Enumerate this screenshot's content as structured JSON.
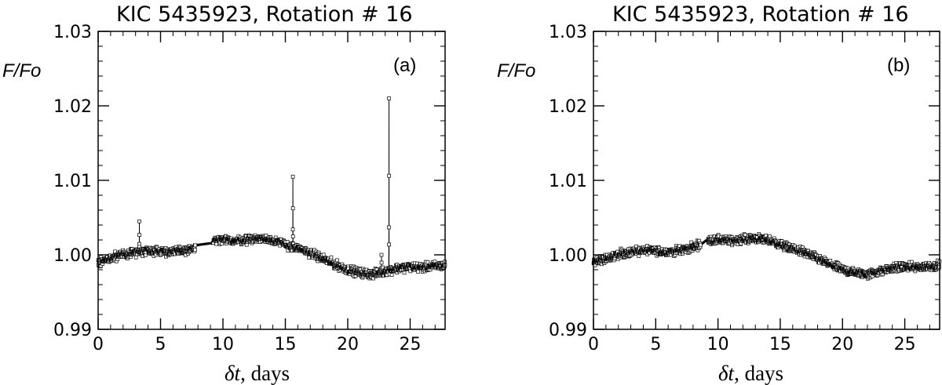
{
  "chart_data": [
    {
      "type": "line",
      "title": "KIC 5435923, Rotation # 16",
      "panel_label": "(a)",
      "ylabel": "F/Fo",
      "xlabel_symbol": "δt",
      "xlabel_unit": ", days",
      "xlim": [
        0,
        27.8
      ],
      "ylim": [
        0.99,
        1.03
      ],
      "xticks": [
        0,
        5,
        10,
        15,
        20,
        25
      ],
      "xtick_labels": [
        "0",
        "5",
        "10",
        "15",
        "20",
        "25"
      ],
      "yticks": [
        0.99,
        1.0,
        1.01,
        1.02,
        1.03
      ],
      "ytick_labels": [
        "0.99",
        "1.00",
        "1.01",
        "1.02",
        "1.03"
      ],
      "gap": [
        7.8,
        9.2
      ],
      "trend_points": [
        [
          0.0,
          0.999
        ],
        [
          1.0,
          0.9995
        ],
        [
          2.0,
          1.0
        ],
        [
          3.0,
          1.0004
        ],
        [
          4.0,
          1.0006
        ],
        [
          5.0,
          1.0005
        ],
        [
          6.0,
          1.0004
        ],
        [
          7.0,
          1.0006
        ],
        [
          8.0,
          1.001
        ],
        [
          9.0,
          1.0018
        ],
        [
          10.0,
          1.002
        ],
        [
          11.0,
          1.0019
        ],
        [
          12.0,
          1.0021
        ],
        [
          13.0,
          1.0022
        ],
        [
          14.0,
          1.002
        ],
        [
          15.0,
          1.0014
        ],
        [
          16.0,
          1.0008
        ],
        [
          17.0,
          1.0003
        ],
        [
          18.0,
          0.9995
        ],
        [
          19.0,
          0.9987
        ],
        [
          20.0,
          0.998
        ],
        [
          21.0,
          0.9976
        ],
        [
          22.0,
          0.9974
        ],
        [
          23.0,
          0.9978
        ],
        [
          24.0,
          0.9982
        ],
        [
          25.0,
          0.9984
        ],
        [
          26.0,
          0.9983
        ],
        [
          27.0,
          0.9985
        ],
        [
          27.8,
          0.9986
        ]
      ],
      "noise_amplitude": 0.0004,
      "flares": [
        {
          "x": 3.3,
          "peak": 1.0045
        },
        {
          "x": 15.6,
          "peak": 1.0105
        },
        {
          "x": 22.7,
          "peak": 1.0
        },
        {
          "x": 23.3,
          "peak": 1.021
        }
      ],
      "marker": "open-square",
      "color": "#000000"
    },
    {
      "type": "line",
      "title": "KIC 5435923, Rotation # 16",
      "panel_label": "(b)",
      "ylabel": "F/Fo",
      "xlabel_symbol": "δt",
      "xlabel_unit": ", days",
      "xlim": [
        0,
        27.8
      ],
      "ylim": [
        0.99,
        1.03
      ],
      "xticks": [
        0,
        5,
        10,
        15,
        20,
        25
      ],
      "xtick_labels": [
        "0",
        "5",
        "10",
        "15",
        "20",
        "25"
      ],
      "yticks": [
        0.99,
        1.0,
        1.01,
        1.02,
        1.03
      ],
      "ytick_labels": [
        "0.99",
        "1.00",
        "1.01",
        "1.02",
        "1.03"
      ],
      "gap": [
        8.6,
        9.2
      ],
      "trend_points": [
        [
          0.0,
          0.999
        ],
        [
          1.0,
          0.9995
        ],
        [
          2.0,
          1.0
        ],
        [
          3.0,
          1.0004
        ],
        [
          4.0,
          1.0006
        ],
        [
          5.0,
          1.0005
        ],
        [
          6.0,
          1.0004
        ],
        [
          7.0,
          1.0006
        ],
        [
          8.0,
          1.001
        ],
        [
          9.0,
          1.0018
        ],
        [
          10.0,
          1.002
        ],
        [
          11.0,
          1.0019
        ],
        [
          12.0,
          1.0021
        ],
        [
          13.0,
          1.0022
        ],
        [
          14.0,
          1.002
        ],
        [
          15.0,
          1.0014
        ],
        [
          16.0,
          1.0008
        ],
        [
          17.0,
          1.0003
        ],
        [
          18.0,
          0.9995
        ],
        [
          19.0,
          0.9987
        ],
        [
          20.0,
          0.998
        ],
        [
          21.0,
          0.9976
        ],
        [
          22.0,
          0.9974
        ],
        [
          23.0,
          0.9978
        ],
        [
          24.0,
          0.9982
        ],
        [
          25.0,
          0.9984
        ],
        [
          26.0,
          0.9983
        ],
        [
          27.0,
          0.9985
        ],
        [
          27.8,
          0.9986
        ]
      ],
      "noise_amplitude": 0.0004,
      "flares": [],
      "marker": "open-square",
      "color": "#000000"
    }
  ]
}
